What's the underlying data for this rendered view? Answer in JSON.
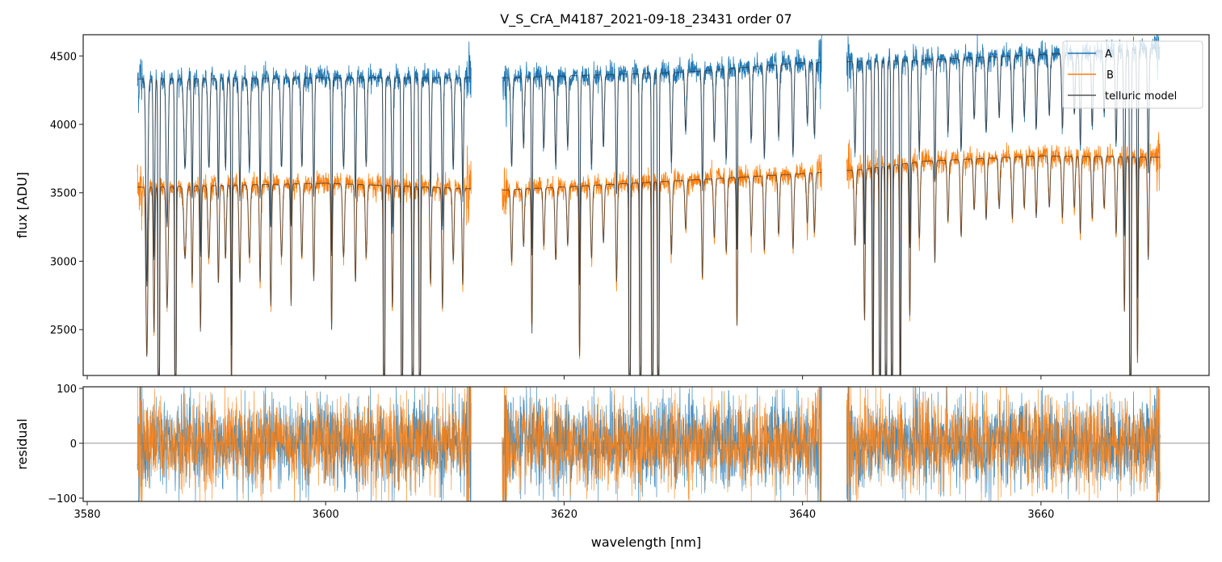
{
  "chart_data": {
    "type": "line",
    "title": "V_S_CrA_M4187_2021-09-18_23431  order 07",
    "xlabel": "wavelength [nm]",
    "panels": [
      {
        "name": "flux",
        "ylabel": "flux [ADU]",
        "ylim": [
          2165,
          4655
        ],
        "yticks": [
          2500,
          3000,
          3500,
          4000,
          4500
        ]
      },
      {
        "name": "residual",
        "ylabel": "residual",
        "ylim": [
          -106,
          103
        ],
        "yticks": [
          -100,
          0,
          100
        ]
      }
    ],
    "xlim": [
      3579.66,
      3674.1
    ],
    "xticks": [
      3580,
      3600,
      3620,
      3640,
      3660
    ],
    "legend": {
      "placement": "top-right",
      "entries": [
        "A",
        "B",
        "telluric model"
      ]
    },
    "colors": {
      "A": "#1f77b4",
      "B": "#ff7f0e",
      "model": "#333333",
      "axis": "#222222"
    },
    "segments": [
      [
        3584.2,
        3612.2
      ],
      [
        3614.8,
        3641.6
      ],
      [
        3643.7,
        3670.0
      ]
    ],
    "continuum": {
      "A": [
        [
          3584,
          4330
        ],
        [
          3600,
          4340
        ],
        [
          3615,
          4340
        ],
        [
          3630,
          4380
        ],
        [
          3640,
          4450
        ],
        [
          3650,
          4470
        ],
        [
          3660,
          4510
        ],
        [
          3670,
          4560
        ]
      ],
      "B": [
        [
          3584,
          3540
        ],
        [
          3600,
          3570
        ],
        [
          3615,
          3520
        ],
        [
          3630,
          3590
        ],
        [
          3640,
          3640
        ],
        [
          3645,
          3670
        ],
        [
          3650,
          3730
        ],
        [
          3660,
          3770
        ],
        [
          3670,
          3760
        ]
      ]
    },
    "absorption_lines_nm_depth_width": [
      [
        3585.0,
        0.35,
        0.08
      ],
      [
        3585.6,
        0.3,
        0.06
      ],
      [
        3586.0,
        1.0,
        0.05
      ],
      [
        3586.7,
        0.25,
        0.08
      ],
      [
        3587.4,
        1.0,
        0.05
      ],
      [
        3588.2,
        0.15,
        0.1
      ],
      [
        3588.8,
        0.2,
        0.06
      ],
      [
        3589.5,
        0.3,
        0.06
      ],
      [
        3590.2,
        0.15,
        0.08
      ],
      [
        3591.0,
        0.2,
        0.06
      ],
      [
        3591.6,
        0.15,
        0.07
      ],
      [
        3592.1,
        0.45,
        0.05
      ],
      [
        3592.8,
        0.2,
        0.07
      ],
      [
        3593.6,
        0.15,
        0.08
      ],
      [
        3594.5,
        0.2,
        0.06
      ],
      [
        3595.4,
        0.25,
        0.06
      ],
      [
        3596.3,
        0.15,
        0.08
      ],
      [
        3597.1,
        0.25,
        0.05
      ],
      [
        3598.0,
        0.15,
        0.07
      ],
      [
        3599.0,
        0.2,
        0.06
      ],
      [
        3600.5,
        0.3,
        0.05
      ],
      [
        3601.5,
        0.15,
        0.08
      ],
      [
        3602.5,
        0.2,
        0.06
      ],
      [
        3603.4,
        0.15,
        0.07
      ],
      [
        3604.9,
        1.0,
        0.05
      ],
      [
        3605.6,
        0.25,
        0.06
      ],
      [
        3606.4,
        1.0,
        0.05
      ],
      [
        3607.3,
        1.0,
        0.05
      ],
      [
        3607.9,
        1.0,
        0.05
      ],
      [
        3608.8,
        0.2,
        0.06
      ],
      [
        3609.8,
        0.25,
        0.06
      ],
      [
        3610.7,
        0.15,
        0.07
      ],
      [
        3611.5,
        0.2,
        0.06
      ],
      [
        3615.6,
        0.15,
        0.07
      ],
      [
        3616.6,
        0.12,
        0.07
      ],
      [
        3617.3,
        0.3,
        0.05
      ],
      [
        3618.3,
        0.12,
        0.07
      ],
      [
        3619.3,
        0.15,
        0.07
      ],
      [
        3620.3,
        0.12,
        0.07
      ],
      [
        3621.3,
        0.35,
        0.05
      ],
      [
        3622.3,
        0.15,
        0.07
      ],
      [
        3623.3,
        0.12,
        0.07
      ],
      [
        3624.4,
        0.2,
        0.06
      ],
      [
        3625.5,
        1.0,
        0.05
      ],
      [
        3626.4,
        1.0,
        0.05
      ],
      [
        3627.4,
        1.0,
        0.05
      ],
      [
        3627.9,
        1.0,
        0.05
      ],
      [
        3629.0,
        0.15,
        0.07
      ],
      [
        3630.2,
        0.1,
        0.07
      ],
      [
        3631.6,
        0.2,
        0.06
      ],
      [
        3632.6,
        0.12,
        0.07
      ],
      [
        3633.6,
        0.15,
        0.07
      ],
      [
        3634.5,
        0.3,
        0.05
      ],
      [
        3635.7,
        0.12,
        0.07
      ],
      [
        3636.8,
        0.15,
        0.07
      ],
      [
        3638.0,
        0.12,
        0.07
      ],
      [
        3639.2,
        0.15,
        0.07
      ],
      [
        3640.4,
        0.1,
        0.07
      ],
      [
        3641.0,
        0.12,
        0.07
      ],
      [
        3644.4,
        0.15,
        0.07
      ],
      [
        3645.2,
        0.3,
        0.06
      ],
      [
        3645.9,
        0.6,
        0.05
      ],
      [
        3646.5,
        0.9,
        0.05
      ],
      [
        3647.0,
        1.0,
        0.05
      ],
      [
        3647.5,
        1.0,
        0.05
      ],
      [
        3648.2,
        0.6,
        0.05
      ],
      [
        3649.0,
        0.3,
        0.06
      ],
      [
        3649.8,
        0.15,
        0.07
      ],
      [
        3651.1,
        0.2,
        0.06
      ],
      [
        3652.2,
        0.12,
        0.07
      ],
      [
        3653.3,
        0.15,
        0.07
      ],
      [
        3654.4,
        0.1,
        0.07
      ],
      [
        3655.4,
        0.12,
        0.07
      ],
      [
        3656.5,
        0.1,
        0.07
      ],
      [
        3657.6,
        0.12,
        0.07
      ],
      [
        3658.6,
        0.1,
        0.07
      ],
      [
        3659.6,
        0.12,
        0.07
      ],
      [
        3660.7,
        0.1,
        0.07
      ],
      [
        3661.8,
        0.12,
        0.07
      ],
      [
        3662.8,
        0.1,
        0.07
      ],
      [
        3663.3,
        0.15,
        0.06
      ],
      [
        3664.3,
        0.12,
        0.07
      ],
      [
        3665.3,
        0.1,
        0.07
      ],
      [
        3666.3,
        0.15,
        0.07
      ],
      [
        3667.0,
        0.3,
        0.06
      ],
      [
        3667.5,
        1.0,
        0.05
      ],
      [
        3668.1,
        0.4,
        0.05
      ],
      [
        3669.0,
        0.2,
        0.06
      ]
    ],
    "noise_adu": {
      "A": 40,
      "B": 40
    },
    "residual_zero_line": 0
  }
}
